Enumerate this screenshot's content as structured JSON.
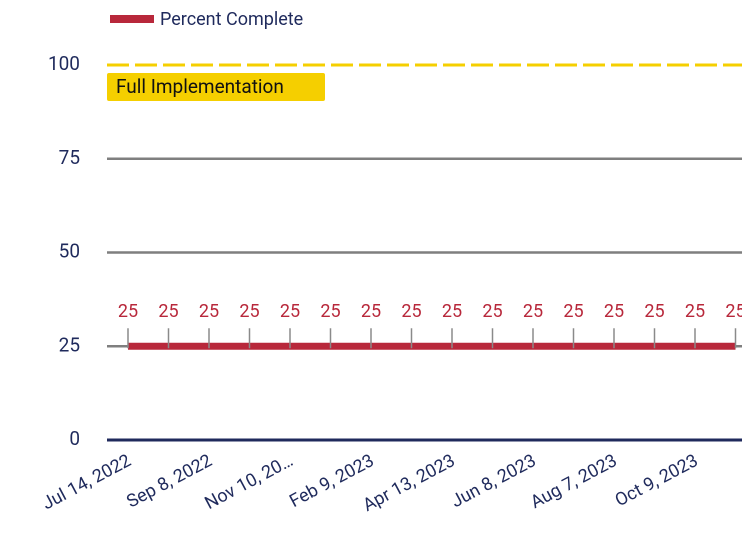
{
  "chart_data": {
    "type": "line",
    "categories": [
      "Jul 14, 2022",
      null,
      "Sep 8, 2022",
      null,
      "Nov 10, 20…",
      null,
      "Feb 9, 2023",
      null,
      "Apr 13, 2023",
      null,
      "Jun 8, 2023",
      null,
      "Aug 7, 2023",
      null,
      "Oct 9, 2023",
      null
    ],
    "series": [
      {
        "name": "Percent Complete",
        "color": "#b8283b",
        "values": [
          25,
          25,
          25,
          25,
          25,
          25,
          25,
          25,
          25,
          25,
          25,
          25,
          25,
          25,
          25,
          25
        ]
      }
    ],
    "ylim": [
      0,
      100
    ],
    "yticks": [
      0,
      25,
      50,
      75,
      100
    ],
    "grid": true,
    "legend": "top-left",
    "annotations": [
      {
        "y": 100,
        "text": "Full Implementation",
        "color": "#f5cf00"
      }
    ]
  }
}
